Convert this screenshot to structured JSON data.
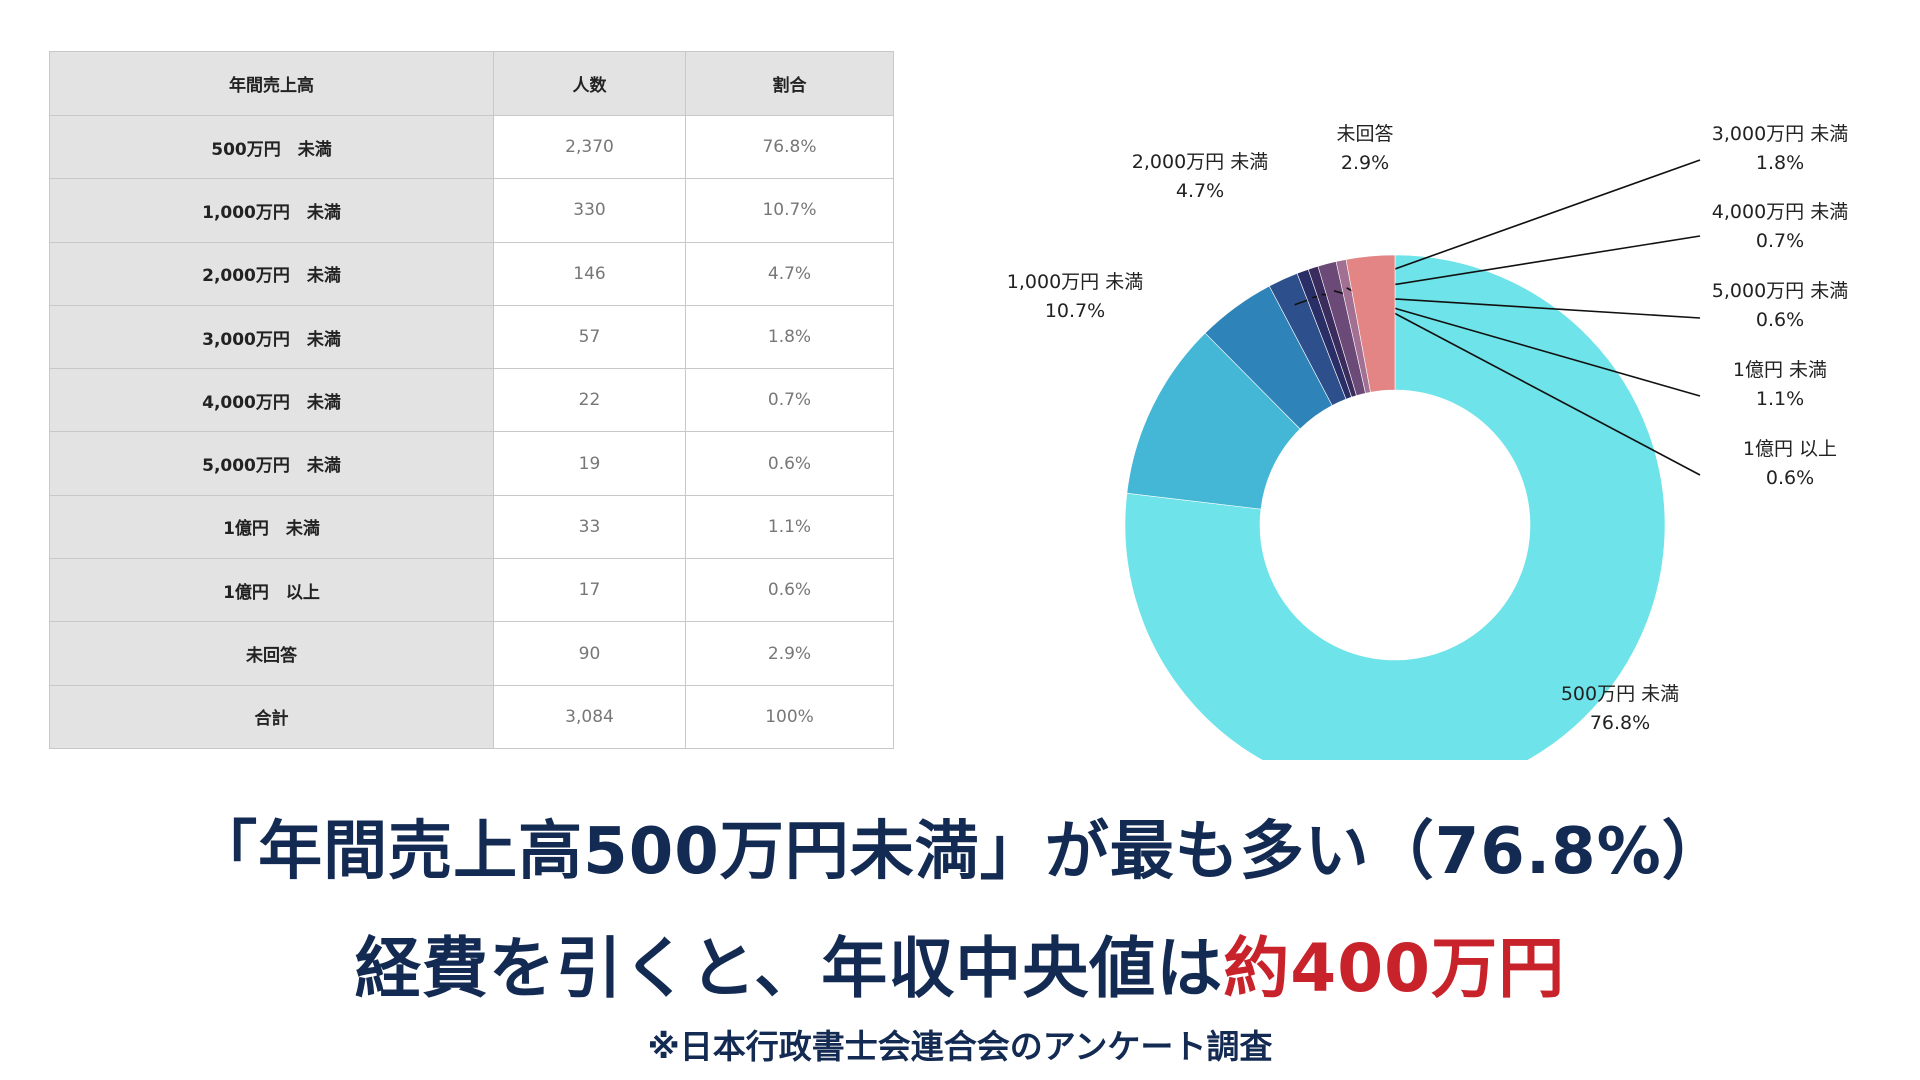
{
  "table": {
    "headers": [
      "年間売上高",
      "人数",
      "割合"
    ],
    "rows": [
      {
        "label": "500万円　未満",
        "count": "2,370",
        "ratio": "76.8%"
      },
      {
        "label": "1,000万円　未満",
        "count": "330",
        "ratio": "10.7%"
      },
      {
        "label": "2,000万円　未満",
        "count": "146",
        "ratio": "4.7%"
      },
      {
        "label": "3,000万円　未満",
        "count": "57",
        "ratio": "1.8%"
      },
      {
        "label": "4,000万円　未満",
        "count": "22",
        "ratio": "0.7%"
      },
      {
        "label": "5,000万円　未満",
        "count": "19",
        "ratio": "0.6%"
      },
      {
        "label": "1億円　未満",
        "count": "33",
        "ratio": "1.1%"
      },
      {
        "label": "1億円　以上",
        "count": "17",
        "ratio": "0.6%"
      },
      {
        "label": "未回答",
        "count": "90",
        "ratio": "2.9%"
      },
      {
        "label": "合計",
        "count": "3,084",
        "ratio": "100%"
      }
    ]
  },
  "chart_data": {
    "type": "pie",
    "donut": true,
    "legend": "none",
    "slices": [
      {
        "label": "500万円 未満",
        "value": 76.8,
        "value_label": "76.8%",
        "color": "#6ee3e9"
      },
      {
        "label": "1,000万円 未満",
        "value": 10.7,
        "value_label": "10.7%",
        "color": "#44b7d6"
      },
      {
        "label": "2,000万円 未満",
        "value": 4.7,
        "value_label": "4.7%",
        "color": "#2e84b8"
      },
      {
        "label": "3,000万円 未満",
        "value": 1.8,
        "value_label": "1.8%",
        "color": "#2d4f8c"
      },
      {
        "label": "4,000万円 未満",
        "value": 0.7,
        "value_label": "0.7%",
        "color": "#2a2e66"
      },
      {
        "label": "5,000万円 未満",
        "value": 0.6,
        "value_label": "0.6%",
        "color": "#3b2c5e"
      },
      {
        "label": "1億円 未満",
        "value": 1.1,
        "value_label": "1.1%",
        "color": "#6b4a78"
      },
      {
        "label": "1億円 以上",
        "value": 0.6,
        "value_label": "0.6%",
        "color": "#a27093"
      },
      {
        "label": "未回答",
        "value": 2.9,
        "value_label": "2.9%",
        "color": "#e48585"
      }
    ]
  },
  "headline": {
    "line1": "「年間売上高500万円未満」が最も多い（76.8%）",
    "line2_main": "経費を引くと、年収中央値は",
    "line2_accent": "約400万円"
  },
  "source_note": "※日本行政書士会連合会のアンケート調査"
}
